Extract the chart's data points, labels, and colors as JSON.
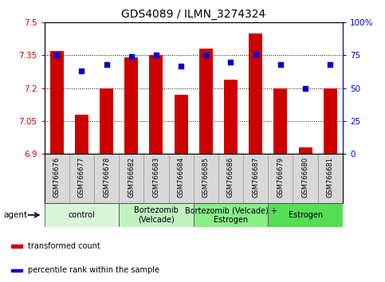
{
  "title": "GDS4089 / ILMN_3274324",
  "samples": [
    "GSM766676",
    "GSM766677",
    "GSM766678",
    "GSM766682",
    "GSM766683",
    "GSM766684",
    "GSM766685",
    "GSM766686",
    "GSM766687",
    "GSM766679",
    "GSM766680",
    "GSM766681"
  ],
  "bar_values": [
    7.37,
    7.08,
    7.2,
    7.34,
    7.35,
    7.17,
    7.38,
    7.24,
    7.45,
    7.2,
    6.93,
    7.2
  ],
  "dot_values": [
    75,
    63,
    68,
    74,
    75,
    67,
    75,
    70,
    76,
    68,
    50,
    68
  ],
  "ylim_left": [
    6.9,
    7.5
  ],
  "ylim_right": [
    0,
    100
  ],
  "yticks_left": [
    6.9,
    7.05,
    7.2,
    7.35,
    7.5
  ],
  "yticks_right": [
    0,
    25,
    50,
    75,
    100
  ],
  "ytick_labels_left": [
    "6.9",
    "7.05",
    "7.2",
    "7.35",
    "7.5"
  ],
  "ytick_labels_right": [
    "0",
    "25",
    "50",
    "75",
    "100%"
  ],
  "groups": [
    {
      "label": "control",
      "start": 0,
      "end": 3,
      "color": "#d8f5d8"
    },
    {
      "label": "Bortezomib\n(Velcade)",
      "start": 3,
      "end": 6,
      "color": "#c0f0c0"
    },
    {
      "label": "Bortezomib (Velcade) +\nEstrogen",
      "start": 6,
      "end": 9,
      "color": "#88ee88"
    },
    {
      "label": "Estrogen",
      "start": 9,
      "end": 12,
      "color": "#55dd55"
    }
  ],
  "bar_color": "#cc0000",
  "dot_color": "#0000cc",
  "bar_base": 6.9,
  "legend_items": [
    {
      "label": "transformed count",
      "color": "#cc0000"
    },
    {
      "label": "percentile rank within the sample",
      "color": "#0000cc"
    }
  ],
  "agent_label": "agent",
  "title_fontsize": 10,
  "tick_fontsize": 7.5,
  "sample_fontsize": 6,
  "group_label_fontsize": 7
}
